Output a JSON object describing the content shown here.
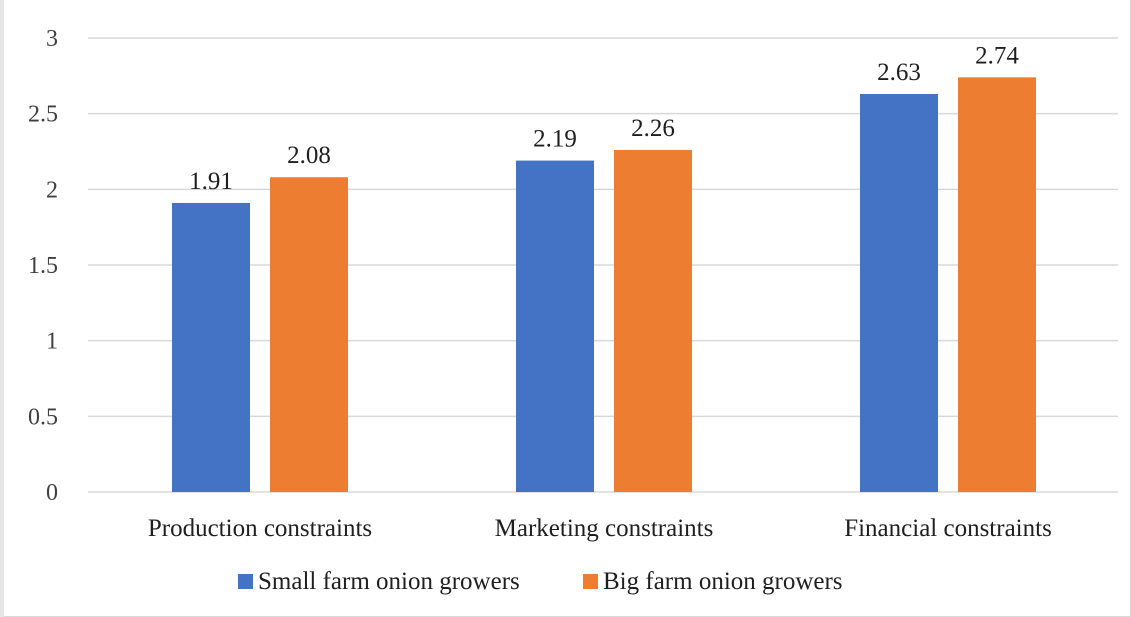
{
  "chart_data": {
    "type": "bar",
    "categories": [
      "Production constraints",
      "Marketing constraints",
      "Financial constraints"
    ],
    "series": [
      {
        "name": "Small farm onion growers",
        "values": [
          1.91,
          2.19,
          2.63
        ],
        "color": "#4472c4"
      },
      {
        "name": "Big farm onion growers",
        "values": [
          2.08,
          2.26,
          2.74
        ],
        "color": "#ed7d31"
      }
    ],
    "data_labels": [
      [
        "1.91",
        "2.19",
        "2.63"
      ],
      [
        "2.08",
        "2.26",
        "2.74"
      ]
    ],
    "yticks": [
      "0",
      "0.5",
      "1",
      "1.5",
      "2",
      "2.5",
      "3"
    ],
    "ylim": [
      0,
      3
    ],
    "grid": true,
    "legend_position": "bottom",
    "gridline_color": "#d9d9d9"
  }
}
